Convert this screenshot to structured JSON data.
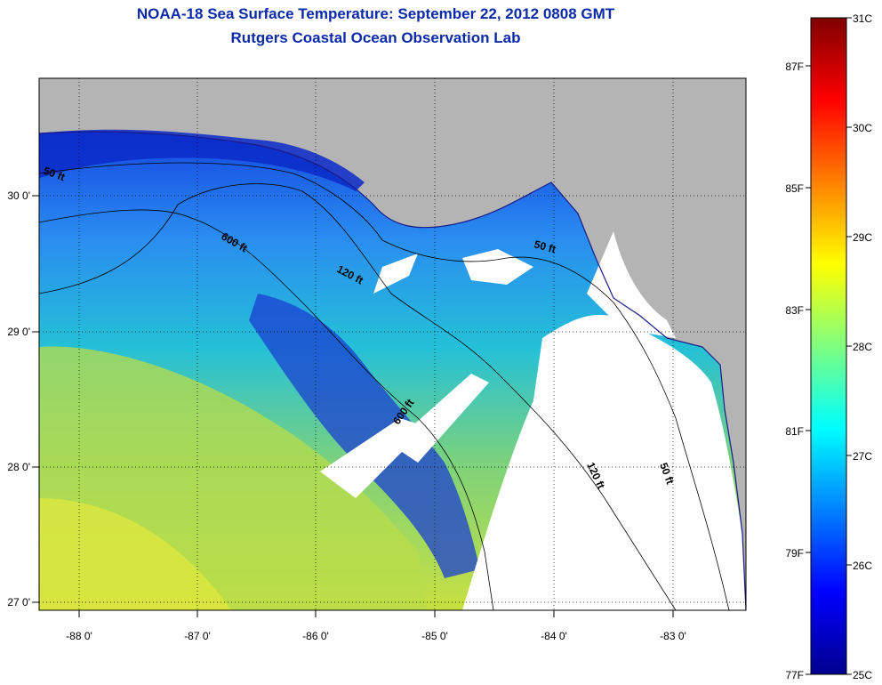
{
  "header": {
    "title": "NOAA-18 Sea Surface Temperature:  September 22, 2012 0808 GMT",
    "subtitle": "Rutgers Coastal Ocean Observation Lab"
  },
  "map": {
    "x_ticks": [
      "-88 0'",
      "-87 0'",
      "-86 0'",
      "-85 0'",
      "-84 0'",
      "-83 0'"
    ],
    "y_ticks": [
      "30 0'",
      "29 0'",
      "28 0'",
      "27 0'"
    ],
    "contours": [
      "600 ft",
      "120 ft",
      "50 ft",
      "600 ft",
      "50 ft",
      "120 ft",
      "50 ft"
    ],
    "colors": {
      "land": "#b4b4b4",
      "no_data": "#ffffff"
    }
  },
  "colorbar": {
    "celsius": [
      "31C",
      "30C",
      "29C",
      "28C",
      "27C",
      "26C",
      "25C"
    ],
    "fahrenheit": [
      "87F",
      "85F",
      "83F",
      "81F",
      "79F",
      "77F"
    ],
    "gradient": [
      "#7f0000",
      "#ff0000",
      "#ff8000",
      "#ffff00",
      "#80ff80",
      "#00ffff",
      "#0080ff",
      "#0000ff",
      "#00008f"
    ]
  }
}
